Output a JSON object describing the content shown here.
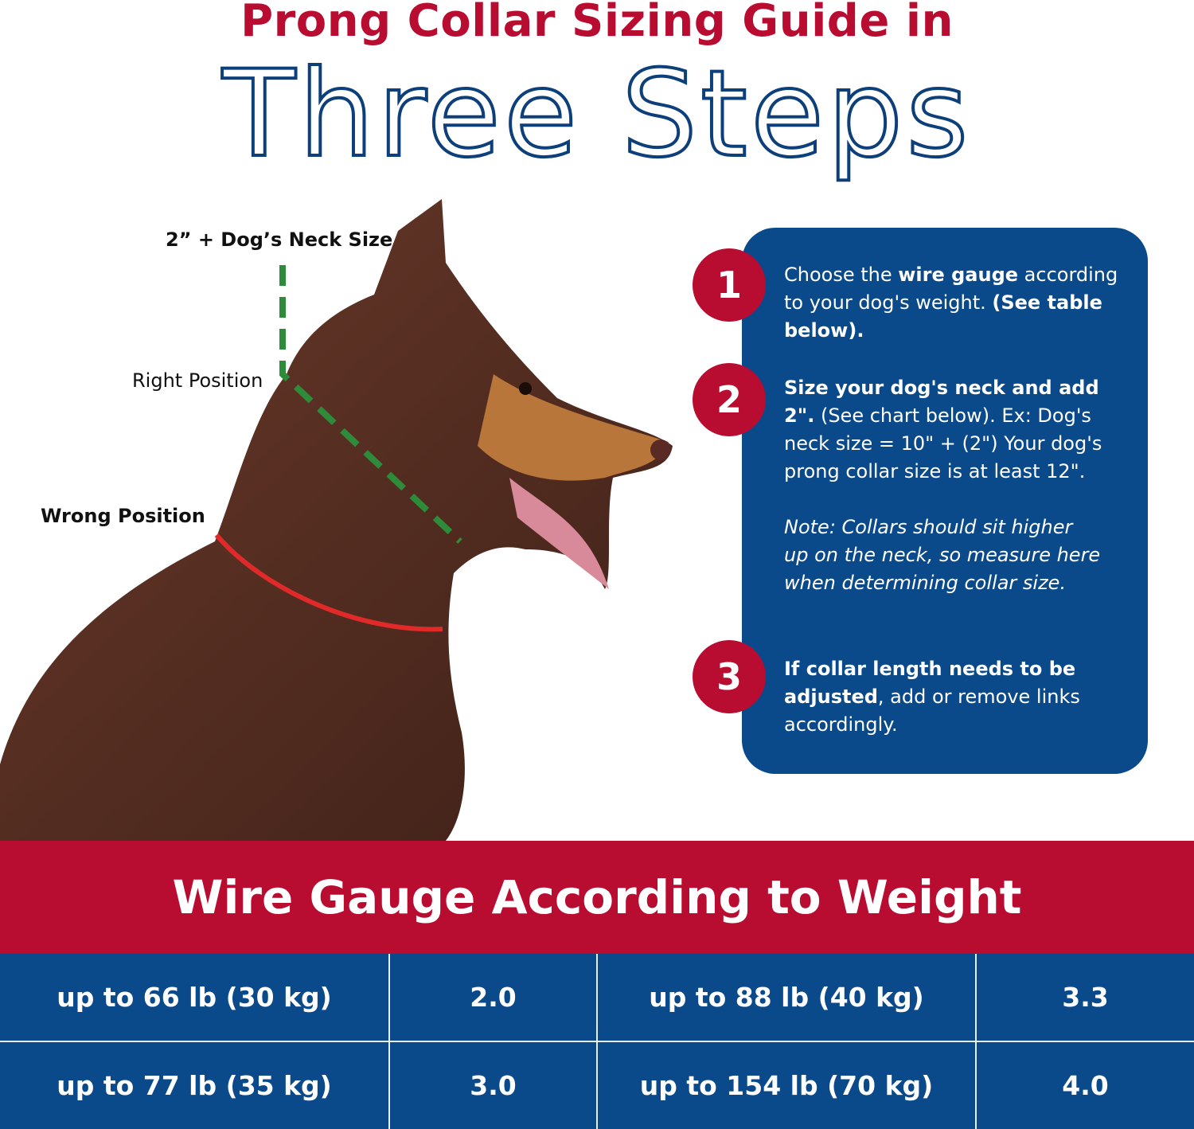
{
  "header": {
    "title_line1": "Prong Collar Sizing Guide in",
    "title_line2": "Three Steps"
  },
  "illustration": {
    "neck_size_label": "2” + Dog’s Neck Size",
    "right_position_label": "Right Position",
    "wrong_position_label": "Wrong Position",
    "colors": {
      "right_line": "#2e8b3a",
      "wrong_line": "#e02a2a"
    }
  },
  "steps": [
    {
      "number": "1",
      "parts": [
        {
          "text": "Choose the ",
          "style": "normal"
        },
        {
          "text": "wire gauge",
          "style": "bold"
        },
        {
          "text": " according to your dog's weight. ",
          "style": "normal"
        },
        {
          "text": "(See table below).",
          "style": "bold"
        }
      ]
    },
    {
      "number": "2",
      "parts": [
        {
          "text": "Size your dog's neck and add 2\".",
          "style": "bold"
        },
        {
          "text": " (See chart below). Ex: Dog's neck size = 10\" + (2\") Your dog's prong collar size is at least 12\".",
          "style": "normal"
        },
        {
          "text": "Note: Collars should sit higher up on the neck, so measure here when determining collar size.",
          "style": "italic"
        }
      ]
    },
    {
      "number": "3",
      "parts": [
        {
          "text": "If collar length needs to be adjusted",
          "style": "bold"
        },
        {
          "text": ", add or remove links accordingly.",
          "style": "normal"
        }
      ]
    }
  ],
  "table": {
    "title": "Wire Gauge According to Weight",
    "rows": [
      [
        "up to 66 lb (30 kg)",
        "2.0",
        "up to 88 lb (40 kg)",
        "3.3"
      ],
      [
        "up to 77 lb (35 kg)",
        "3.0",
        "up to 154 lb (70 kg)",
        "4.0"
      ]
    ]
  },
  "colors": {
    "red": "#b80d30",
    "blue": "#0b4a8a",
    "navy_outline": "#0d3f7a"
  }
}
